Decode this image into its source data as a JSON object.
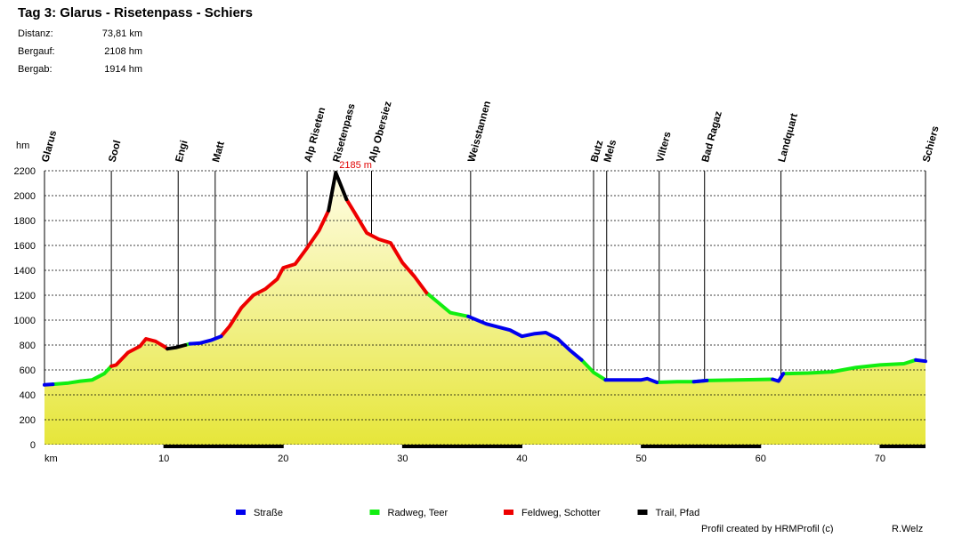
{
  "chart_data": {
    "type": "line",
    "title": "Tag 3: Glarus - Risetenpass - Schiers",
    "stats": [
      {
        "label": "Distanz:",
        "value": "73,81 km"
      },
      {
        "label": "Bergauf:",
        "value": "2108 hm"
      },
      {
        "label": "Bergab:",
        "value": "1914 hm"
      }
    ],
    "x_label": "km",
    "y_label": "hm",
    "peak_label": "2185 m",
    "xlim": [
      0,
      73.81
    ],
    "ylim": [
      0,
      2200
    ],
    "xticks": [
      10,
      20,
      30,
      40,
      50,
      60,
      70
    ],
    "yticks": [
      0,
      200,
      400,
      600,
      800,
      1000,
      1200,
      1400,
      1600,
      1800,
      2000,
      2200
    ],
    "grid": true,
    "waypoints": [
      {
        "name": "Glarus",
        "km": 0
      },
      {
        "name": "Sool",
        "km": 5.6
      },
      {
        "name": "Engi",
        "km": 11.2
      },
      {
        "name": "Matt",
        "km": 14.3
      },
      {
        "name": "Alp Riseten",
        "km": 22
      },
      {
        "name": "Risetenpass",
        "km": 24.4
      },
      {
        "name": "Alp Obersiez",
        "km": 27.4
      },
      {
        "name": "Weisstannen",
        "km": 35.7
      },
      {
        "name": "Butz",
        "km": 46
      },
      {
        "name": "Mels",
        "km": 47.1
      },
      {
        "name": "Vilters",
        "km": 51.5
      },
      {
        "name": "Bad Ragaz",
        "km": 55.3
      },
      {
        "name": "Landquart",
        "km": 61.7
      },
      {
        "name": "Schiers",
        "km": 73.81
      }
    ],
    "x": [
      0,
      0.7,
      2,
      3,
      4,
      5,
      5.6,
      6,
      7,
      8,
      8.5,
      9.3,
      10,
      10.3,
      11,
      11.8,
      12.2,
      13,
      14,
      14.8,
      15.5,
      16.5,
      17.5,
      18.5,
      19.5,
      20,
      21,
      22,
      23,
      23.8,
      24.4,
      25.3,
      26,
      27,
      28,
      29,
      30,
      31,
      32,
      33,
      34,
      35.5,
      37,
      39,
      40,
      41,
      42,
      43,
      44,
      45,
      46,
      47,
      48,
      50,
      50.5,
      51.3,
      53,
      54.4,
      55.5,
      58,
      61,
      61.5,
      61.9,
      64,
      66,
      68,
      70,
      72,
      73,
      73.81
    ],
    "series": [
      {
        "name": "Straße",
        "color": "#0000ee",
        "values": [
          480,
          485,
          null,
          null,
          null,
          null,
          null,
          null,
          null,
          null,
          null,
          null,
          null,
          null,
          null,
          null,
          810,
          815,
          840,
          870,
          null,
          null,
          null,
          null,
          null,
          null,
          null,
          null,
          null,
          null,
          null,
          null,
          null,
          null,
          null,
          null,
          null,
          null,
          null,
          null,
          null,
          1030,
          970,
          920,
          870,
          890,
          900,
          850,
          760,
          680,
          null,
          520,
          520,
          520,
          530,
          500,
          null,
          505,
          515,
          null,
          525,
          510,
          570,
          null,
          null,
          null,
          null,
          null,
          680,
          670
        ]
      },
      {
        "name": "Radweg, Teer",
        "color": "#11ee11",
        "values": [
          null,
          485,
          495,
          510,
          520,
          570,
          630,
          null,
          null,
          null,
          null,
          null,
          null,
          null,
          null,
          800,
          810,
          null,
          null,
          null,
          null,
          null,
          null,
          null,
          null,
          null,
          null,
          null,
          null,
          null,
          null,
          null,
          null,
          null,
          null,
          null,
          null,
          null,
          1220,
          1140,
          1060,
          1030,
          null,
          null,
          null,
          null,
          null,
          null,
          null,
          680,
          580,
          520,
          null,
          null,
          null,
          500,
          505,
          505,
          515,
          520,
          525,
          null,
          570,
          575,
          585,
          620,
          640,
          650,
          680,
          null
        ]
      },
      {
        "name": "Feldweg, Schotter",
        "color": "#ee0000",
        "values": [
          null,
          null,
          null,
          null,
          null,
          null,
          630,
          640,
          740,
          790,
          850,
          830,
          790,
          770,
          null,
          null,
          null,
          null,
          null,
          870,
          950,
          1100,
          1200,
          1250,
          1330,
          1420,
          1450,
          1580,
          1720,
          1880,
          null,
          1970,
          1860,
          1700,
          1650,
          1620,
          1460,
          1350,
          1220,
          null,
          null,
          null,
          null,
          null,
          null,
          null,
          null,
          null,
          null,
          null,
          null,
          null,
          null,
          null,
          null,
          null,
          null,
          null,
          null,
          null,
          null,
          null,
          null,
          null,
          null,
          null,
          null,
          null,
          null,
          null
        ]
      },
      {
        "name": "Trail, Pfad",
        "color": "#000000",
        "values": [
          null,
          null,
          null,
          null,
          null,
          null,
          null,
          null,
          null,
          null,
          null,
          null,
          null,
          770,
          780,
          800,
          null,
          null,
          null,
          null,
          null,
          null,
          null,
          null,
          null,
          null,
          null,
          null,
          null,
          1880,
          2185,
          1970,
          null,
          null,
          null,
          null,
          null,
          null,
          null,
          null,
          null,
          null,
          null,
          null,
          null,
          null,
          null,
          null,
          null,
          null,
          null,
          null,
          null,
          null,
          null,
          null,
          null,
          null,
          null,
          null,
          null,
          null,
          null,
          null,
          null,
          null,
          null,
          null,
          null,
          null
        ]
      }
    ],
    "footer": {
      "credit": "Profil created by HRMProfil (c)",
      "author": "R.Welz"
    }
  }
}
